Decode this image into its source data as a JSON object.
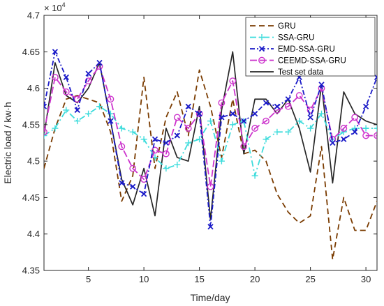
{
  "chart_data": {
    "type": "line",
    "xlabel": "Time/day",
    "ylabel": "Electric load / kw·h",
    "y_exponent_label": "× 10",
    "y_exponent_power": "4",
    "xlim": [
      1,
      31
    ],
    "ylim": [
      4.35,
      4.7
    ],
    "x_ticks": [
      5,
      10,
      15,
      20,
      25,
      30
    ],
    "y_ticks": [
      4.35,
      4.4,
      4.45,
      4.5,
      4.55,
      4.6,
      4.65,
      4.7
    ],
    "y_tick_labels": [
      "4.35",
      "4.4",
      "4.45",
      "4.5",
      "4.55",
      "4.6",
      "4.65",
      "4.7"
    ],
    "x": [
      1,
      2,
      3,
      4,
      5,
      6,
      7,
      8,
      9,
      10,
      11,
      12,
      13,
      14,
      15,
      16,
      17,
      18,
      19,
      20,
      21,
      22,
      23,
      24,
      25,
      26,
      27,
      28,
      29,
      30,
      31
    ],
    "grid": false,
    "legend_position": "top-right",
    "series": [
      {
        "name": "GRU",
        "color": "#7a3b00",
        "dash": "8,5",
        "marker": "none",
        "values": [
          4.49,
          4.545,
          4.585,
          4.59,
          4.585,
          4.58,
          4.54,
          4.445,
          4.48,
          4.615,
          4.49,
          4.56,
          4.595,
          4.535,
          4.625,
          4.575,
          4.505,
          4.585,
          4.51,
          4.515,
          4.5,
          4.455,
          4.43,
          4.415,
          4.425,
          4.52,
          4.365,
          4.45,
          4.405,
          4.405,
          4.445
        ]
      },
      {
        "name": "SSA-GRU",
        "color": "#3ddcdc",
        "dash": "9,4,2,4",
        "marker": "plus",
        "values": [
          4.535,
          4.545,
          4.57,
          4.555,
          4.565,
          4.575,
          4.565,
          4.545,
          4.54,
          4.53,
          4.505,
          4.49,
          4.495,
          4.525,
          4.53,
          4.555,
          4.5,
          4.55,
          4.555,
          4.48,
          4.53,
          4.54,
          4.54,
          4.555,
          4.545,
          4.565,
          4.53,
          4.54,
          4.545,
          4.545,
          4.545
        ]
      },
      {
        "name": "EMD-SSA-GRU",
        "color": "#1a1ac8",
        "dash": "7,3,2,3",
        "marker": "x",
        "values": [
          4.575,
          4.65,
          4.615,
          4.57,
          4.62,
          4.635,
          4.555,
          4.47,
          4.465,
          4.455,
          4.53,
          4.525,
          4.535,
          4.575,
          4.565,
          4.41,
          4.56,
          4.565,
          4.555,
          4.565,
          4.58,
          4.575,
          4.585,
          4.615,
          4.56,
          4.605,
          4.525,
          4.53,
          4.54,
          4.575,
          4.615
        ]
      },
      {
        "name": "CEEMD-SSA-GRU",
        "color": "#cc33cc",
        "dash": "10,4",
        "marker": "circle",
        "values": [
          4.54,
          4.615,
          4.595,
          4.585,
          4.61,
          4.63,
          4.585,
          4.52,
          4.49,
          4.475,
          4.515,
          4.51,
          4.56,
          4.545,
          4.565,
          4.465,
          4.58,
          4.61,
          4.52,
          4.545,
          4.555,
          4.57,
          4.575,
          4.59,
          4.57,
          4.6,
          4.53,
          4.545,
          4.56,
          4.535,
          4.535
        ]
      },
      {
        "name": "Test set data",
        "color": "#262626",
        "dash": "",
        "marker": "none",
        "values": [
          4.535,
          4.635,
          4.59,
          4.58,
          4.6,
          4.635,
          4.555,
          4.475,
          4.44,
          4.49,
          4.425,
          4.545,
          4.505,
          4.5,
          4.575,
          4.42,
          4.57,
          4.65,
          4.51,
          4.585,
          4.585,
          4.565,
          4.585,
          4.545,
          4.485,
          4.605,
          4.47,
          4.595,
          4.565,
          4.555,
          4.55
        ]
      }
    ]
  }
}
